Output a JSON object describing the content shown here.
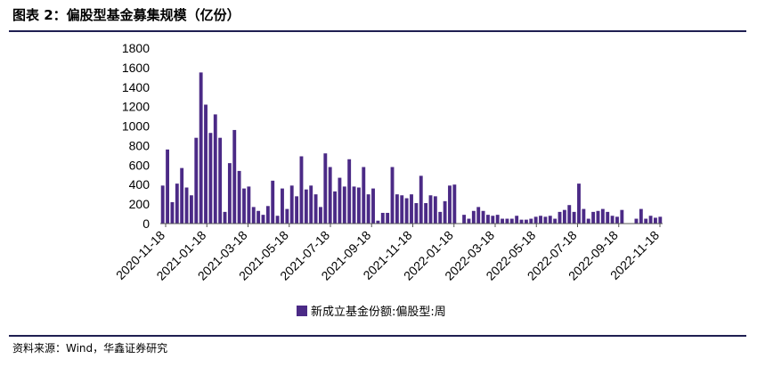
{
  "header": {
    "title": "图表 2：偏股型基金募集规模（亿份）"
  },
  "footer": {
    "source": "资料来源：Wind，华鑫证券研究"
  },
  "colors": {
    "bar": "#4b2a86",
    "rule": "#1f1f52"
  },
  "chart_data": {
    "type": "bar",
    "ylim": [
      0,
      1800
    ],
    "yticks": [
      0,
      200,
      400,
      600,
      800,
      1000,
      1200,
      1400,
      1600,
      1800
    ],
    "xtick_labels": [
      "2020-11-18",
      "2021-01-18",
      "2021-03-18",
      "2021-05-18",
      "2021-07-18",
      "2021-09-18",
      "2021-11-18",
      "2022-01-18",
      "2022-03-18",
      "2022-05-18",
      "2022-07-18",
      "2022-09-18",
      "2022-11-18"
    ],
    "legend": [
      "新成立基金份额:偏股型:周"
    ],
    "series": [
      {
        "name": "新成立基金份额:偏股型:周",
        "values": [
          390,
          760,
          220,
          410,
          570,
          370,
          290,
          880,
          1550,
          1220,
          930,
          1120,
          880,
          120,
          620,
          960,
          540,
          360,
          380,
          170,
          130,
          90,
          180,
          440,
          80,
          360,
          150,
          390,
          280,
          690,
          350,
          390,
          300,
          170,
          720,
          580,
          330,
          470,
          380,
          660,
          380,
          370,
          580,
          300,
          360,
          30,
          110,
          110,
          580,
          300,
          290,
          260,
          300,
          210,
          490,
          210,
          290,
          280,
          120,
          230,
          390,
          400,
          0,
          90,
          50,
          130,
          170,
          130,
          90,
          80,
          90,
          50,
          50,
          50,
          80,
          40,
          40,
          50,
          70,
          80,
          70,
          80,
          50,
          120,
          140,
          190,
          120,
          410,
          150,
          50,
          120,
          130,
          150,
          120,
          80,
          70,
          140,
          0,
          0,
          50,
          150,
          50,
          80,
          60,
          70
        ]
      }
    ]
  }
}
